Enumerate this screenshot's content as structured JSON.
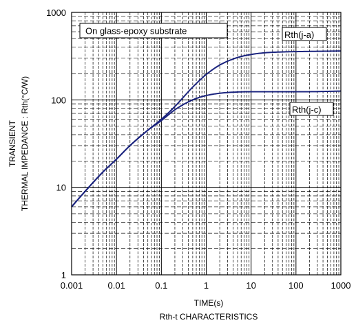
{
  "chart_data": {
    "type": "line",
    "title": "Rth-t CHARACTERISTICS",
    "xlabel": "TIME(s)",
    "ylabel_line1": "TRANSIENT",
    "ylabel_line2": "THERMAL IMPEDANCE : Rth(°C/W)",
    "x_scale": "log",
    "y_scale": "log",
    "xlim": [
      0.001,
      1000
    ],
    "ylim": [
      1,
      1000
    ],
    "x_ticks": [
      "0.001",
      "0.01",
      "0.1",
      "1",
      "10",
      "100",
      "1000"
    ],
    "y_ticks": [
      "1",
      "10",
      "100",
      "1000"
    ],
    "grid": true,
    "annotation": "On glass-epoxy substrate",
    "series": [
      {
        "name": "Rth(j-a)",
        "color": "#1a237e",
        "x": [
          0.001,
          0.002,
          0.005,
          0.01,
          0.02,
          0.05,
          0.1,
          0.2,
          0.5,
          1,
          2,
          5,
          10,
          20,
          50,
          100,
          200,
          500,
          1000
        ],
        "y": [
          6,
          9,
          15,
          21,
          30,
          45,
          60,
          84,
          140,
          195,
          250,
          305,
          330,
          345,
          353,
          356,
          358,
          360,
          362
        ]
      },
      {
        "name": "Rth(j-c)",
        "color": "#1a237e",
        "x": [
          0.001,
          0.002,
          0.005,
          0.01,
          0.02,
          0.05,
          0.1,
          0.2,
          0.5,
          1,
          2,
          5,
          10,
          20,
          50,
          100,
          200,
          500,
          1000
        ],
        "y": [
          6,
          9,
          15,
          21,
          30,
          45,
          58,
          77,
          100,
          112,
          119,
          123,
          124,
          124,
          124,
          124,
          124,
          125,
          126
        ]
      }
    ]
  }
}
